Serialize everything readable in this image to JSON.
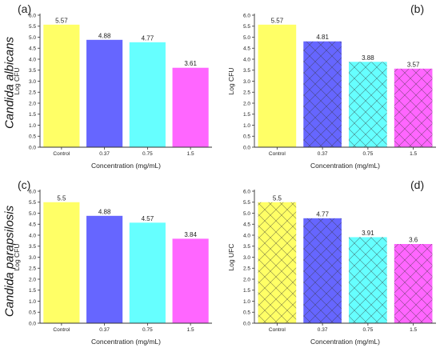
{
  "row_labels": [
    "Candida albicans",
    "Candida parapsilosis"
  ],
  "chart_data": [
    {
      "type": "bar",
      "panel_label": "(a)",
      "categories": [
        "Control",
        "0.37",
        "0.75",
        "1.5"
      ],
      "values": [
        5.57,
        4.88,
        4.77,
        3.61
      ],
      "data_labels": [
        "5.57",
        "4.88",
        "4.77",
        "3.61"
      ],
      "xlabel": "Concentration (mg/mL)",
      "ylabel": "Log CFU",
      "ylim": [
        0,
        6.0
      ],
      "yticks": [
        "0.0",
        "0.5",
        "1.0",
        "1.5",
        "2.0",
        "2.5",
        "3.0",
        "3.5",
        "4.0",
        "4.5",
        "5.0",
        "5.5",
        "6.0"
      ],
      "grid": false,
      "colors": [
        "#ffff66",
        "#6666ff",
        "#66ffff",
        "#ff66ff"
      ],
      "hatch": [
        false,
        false,
        false,
        false
      ]
    },
    {
      "type": "bar",
      "panel_label": "(b)",
      "categories": [
        "Control",
        "0.37",
        "0.75",
        "1.5"
      ],
      "values": [
        5.57,
        4.81,
        3.88,
        3.57
      ],
      "data_labels": [
        "5.57",
        "4.81",
        "3.88",
        "3.57"
      ],
      "xlabel": "Concentration (mg/mL)",
      "ylabel": "Log CFU",
      "ylim": [
        0,
        6.0
      ],
      "yticks": [
        "0.0",
        "0.5",
        "1.0",
        "1.5",
        "2.0",
        "2.5",
        "3.0",
        "3.5",
        "4.0",
        "4.5",
        "5.0",
        "5.5",
        "6.0"
      ],
      "grid": false,
      "colors": [
        "#ffff66",
        "#6666ff",
        "#66ffff",
        "#ff66ff"
      ],
      "hatch": [
        false,
        true,
        true,
        true
      ]
    },
    {
      "type": "bar",
      "panel_label": "(c)",
      "categories": [
        "Control",
        "0.37",
        "0.75",
        "1.5"
      ],
      "values": [
        5.5,
        4.88,
        4.57,
        3.84
      ],
      "data_labels": [
        "5.5",
        "4.88",
        "4.57",
        "3.84"
      ],
      "xlabel": "Concentration (mg/mL)",
      "ylabel": "Log CFU",
      "ylim": [
        0,
        6.0
      ],
      "yticks": [
        "0.0",
        "0.5",
        "1.0",
        "1.5",
        "2.0",
        "2.5",
        "3.0",
        "3.5",
        "4.0",
        "4.5",
        "5.0",
        "5.5",
        "6.0"
      ],
      "grid": false,
      "colors": [
        "#ffff66",
        "#6666ff",
        "#66ffff",
        "#ff66ff"
      ],
      "hatch": [
        false,
        false,
        false,
        false
      ]
    },
    {
      "type": "bar",
      "panel_label": "(d)",
      "categories": [
        "Control",
        "0.37",
        "0.75",
        "1.5"
      ],
      "values": [
        5.5,
        4.77,
        3.91,
        3.6
      ],
      "data_labels": [
        "5.5",
        "4.77",
        "3.91",
        "3.6"
      ],
      "xlabel": "Concentration (mg/mL)",
      "ylabel": "Log UFC",
      "ylim": [
        0,
        6.0
      ],
      "yticks": [
        "0.0",
        "0.5",
        "1.0",
        "1.5",
        "2.0",
        "2.5",
        "3.0",
        "3.5",
        "4.0",
        "4.5",
        "5.0",
        "5.5",
        "6.0"
      ],
      "grid": false,
      "colors": [
        "#ffff66",
        "#6666ff",
        "#66ffff",
        "#ff66ff"
      ],
      "hatch": [
        true,
        true,
        true,
        true
      ]
    }
  ]
}
